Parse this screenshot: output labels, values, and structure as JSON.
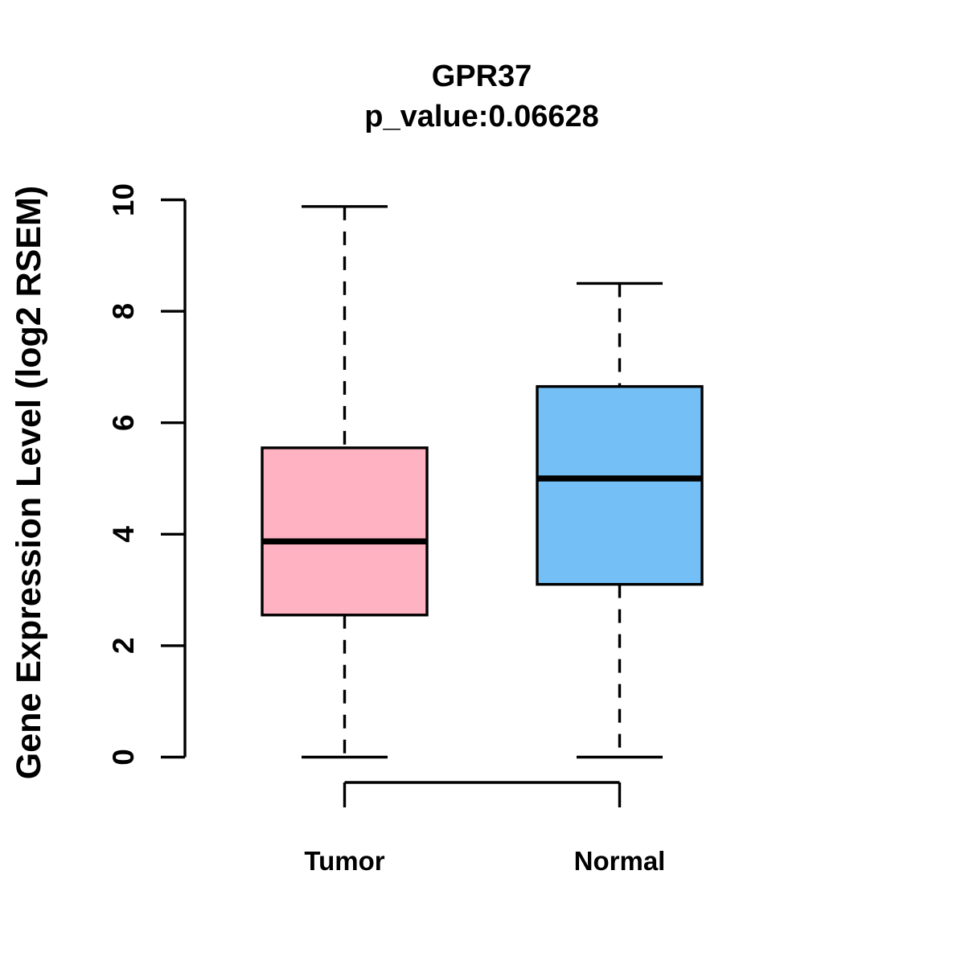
{
  "page": {
    "background_color": "#FFFFFF",
    "foreground_color": "#000000"
  },
  "chart_data": {
    "type": "boxplot",
    "title": "GPR37",
    "subtitle": "p_value:0.06628",
    "p_value": "0.06628",
    "gene": "GPR37",
    "ylabel": "Gene Expression Level (log2 RSEM)",
    "xlabel": "",
    "ylim": [
      0,
      10
    ],
    "yticks": [
      "0",
      "2",
      "4",
      "6",
      "8",
      "10"
    ],
    "grid": false,
    "legend": "none",
    "categories": [
      "Tumor",
      "Normal"
    ],
    "groups": [
      {
        "label": "Tumor",
        "fill_color": "#FFB2C1",
        "whisker_min": 0,
        "q1": 2.55,
        "median": 3.87,
        "q3": 5.55,
        "whisker_max": 9.88
      },
      {
        "label": "Normal",
        "fill_color": "#74BFF6",
        "whisker_min": 0,
        "q1": 3.1,
        "median": 5.0,
        "q3": 6.65,
        "whisker_max": 8.5
      }
    ],
    "box_border_color": "#000000",
    "median_color": "#000000",
    "whisker_style": "dashed"
  }
}
